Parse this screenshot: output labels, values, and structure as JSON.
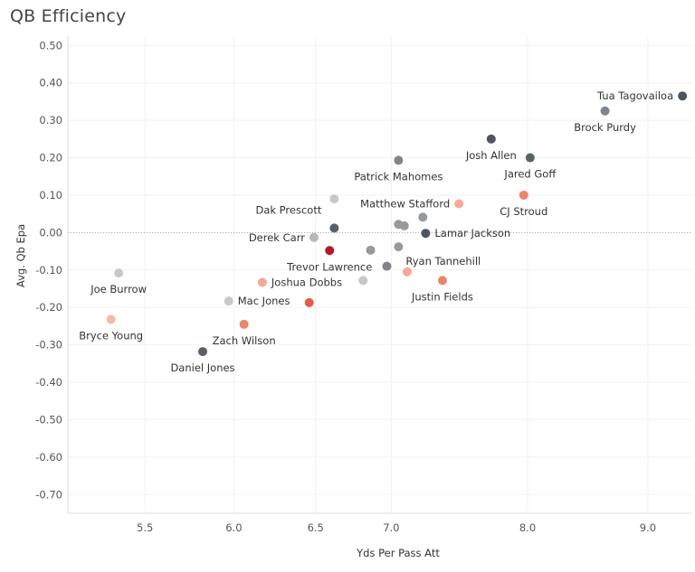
{
  "chart_data": {
    "type": "scatter",
    "title": "QB Efficiency",
    "xlabel": "Yds Per Pass Att",
    "ylabel": "Avg. Qb Epa",
    "xlim": [
      5.1,
      9.4
    ],
    "ylim": [
      -0.75,
      0.52
    ],
    "x_ticks": [
      5.5,
      6.0,
      6.5,
      7.0,
      8.0,
      9.0
    ],
    "x_tick_labels": [
      "5.5",
      "6.0",
      "6.5",
      "7.0",
      "8.0",
      "9.0"
    ],
    "y_ticks": [
      0.5,
      0.4,
      0.3,
      0.2,
      0.1,
      0.0,
      -0.1,
      -0.2,
      -0.3,
      -0.4,
      -0.5,
      -0.6,
      -0.7
    ],
    "y_tick_labels": [
      "0.50",
      "0.40",
      "0.30",
      "0.20",
      "0.10",
      "0.00",
      "-0.10",
      "-0.20",
      "-0.30",
      "-0.40",
      "-0.50",
      "-0.60",
      "-0.70"
    ],
    "reference_line": {
      "axis": "y",
      "value": 0.0,
      "style": "dotted"
    },
    "points": [
      {
        "name": "Tua Tagovailoa",
        "x": 9.31,
        "y": 0.365,
        "color": "#4d5560",
        "label_pos": "left"
      },
      {
        "name": "Brock Purdy",
        "x": 8.63,
        "y": 0.325,
        "color": "#7e858c",
        "label_pos": "below"
      },
      {
        "name": "Josh Allen",
        "x": 7.72,
        "y": 0.25,
        "color": "#4d5560",
        "label_pos": "below"
      },
      {
        "name": "Jared Goff",
        "x": 8.02,
        "y": 0.2,
        "color": "#5a6068",
        "label_pos": "below"
      },
      {
        "name": "Patrick Mahomes",
        "x": 7.05,
        "y": 0.193,
        "color": "#7e858c",
        "label_pos": "below"
      },
      {
        "name": "CJ Stroud",
        "x": 7.97,
        "y": 0.1,
        "color": "#f0836a",
        "label_pos": "below"
      },
      {
        "name": "Matthew Stafford",
        "x": 7.48,
        "y": 0.077,
        "color": "#f7a798",
        "label_pos": "left"
      },
      {
        "name": "Dak Prescott",
        "x": 6.62,
        "y": 0.012,
        "color": "#5a6068",
        "label_pos": "above-left"
      },
      {
        "name": "Lamar Jackson",
        "x": 7.24,
        "y": -0.002,
        "color": "#4d5560",
        "label_pos": "right"
      },
      {
        "name": "Derek Carr",
        "x": 6.49,
        "y": -0.013,
        "color": "#b8b8b8",
        "label_pos": "left"
      },
      {
        "name": "Trevor Lawrence",
        "x": 6.59,
        "y": -0.048,
        "color": "#b5152b",
        "label_pos": "below"
      },
      {
        "name": "Ryan Tannehill",
        "x": 7.05,
        "y": -0.038,
        "color": "#959a9f",
        "label_pos": "below-right"
      },
      {
        "name": "Joe Burrow",
        "x": 5.36,
        "y": -0.108,
        "color": "#c8c8c8",
        "label_pos": "below"
      },
      {
        "name": "Joshua Dobbs",
        "x": 6.17,
        "y": -0.133,
        "color": "#f7a798",
        "label_pos": "right"
      },
      {
        "name": "Justin Fields",
        "x": 7.36,
        "y": -0.128,
        "color": "#f0836a",
        "label_pos": "below"
      },
      {
        "name": "Mac Jones",
        "x": 5.97,
        "y": -0.183,
        "color": "#c8c8c8",
        "label_pos": "right"
      },
      {
        "name": "Bryce Young",
        "x": 5.32,
        "y": -0.232,
        "color": "#f5b9ae",
        "label_pos": "below"
      },
      {
        "name": "Zach Wilson",
        "x": 6.06,
        "y": -0.245,
        "color": "#f0836a",
        "label_pos": "below"
      },
      {
        "name": "Daniel Jones",
        "x": 5.82,
        "y": -0.318,
        "color": "#5a6068",
        "label_pos": "below"
      },
      {
        "name": "",
        "x": 6.62,
        "y": 0.09,
        "color": "#c8c8c8"
      },
      {
        "name": "",
        "x": 7.05,
        "y": 0.022,
        "color": "#959a9f"
      },
      {
        "name": "",
        "x": 7.09,
        "y": 0.018,
        "color": "#959a9f"
      },
      {
        "name": "",
        "x": 7.22,
        "y": 0.041,
        "color": "#959a9f"
      },
      {
        "name": "",
        "x": 6.86,
        "y": -0.047,
        "color": "#959a9f"
      },
      {
        "name": "",
        "x": 6.97,
        "y": -0.09,
        "color": "#7e858c"
      },
      {
        "name": "",
        "x": 6.81,
        "y": -0.128,
        "color": "#c8c8c8"
      },
      {
        "name": "",
        "x": 7.11,
        "y": -0.105,
        "color": "#f7a798"
      },
      {
        "name": "",
        "x": 6.46,
        "y": -0.187,
        "color": "#ea5a4a"
      }
    ]
  }
}
